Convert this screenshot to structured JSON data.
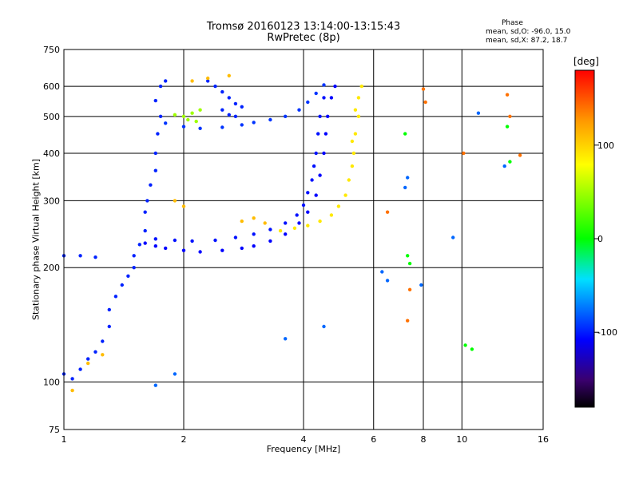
{
  "header": {
    "title_line1": "Tromsø 20160123 13:14:00-13:15:43",
    "title_line2": "RwPretec (8p)"
  },
  "phase_info": {
    "title": "Phase",
    "line_o": "mean, sd,O: -96.0, 15.0",
    "line_x": "mean, sd,X:  87.2, 18.7"
  },
  "colorbar": {
    "unit": "[deg]",
    "ticks": [
      "100",
      "0",
      "-100"
    ],
    "range": [
      -180,
      180
    ]
  },
  "chart_data": {
    "type": "scatter",
    "xlabel": "Frequency [MHz]",
    "ylabel": "Stationary phase Virtual Height [km]",
    "x_scale": "log",
    "y_scale": "log",
    "xlim": [
      1,
      16
    ],
    "ylim": [
      75,
      750
    ],
    "x_ticks": [
      "1",
      "2",
      "4",
      "6",
      "8",
      "10",
      "16"
    ],
    "y_ticks": [
      "75",
      "100",
      "200",
      "300",
      "400",
      "500",
      "600",
      "750"
    ],
    "grid": true,
    "series": [
      {
        "phase": -100,
        "points": [
          [
            1.0,
            215
          ],
          [
            1.1,
            215
          ],
          [
            1.2,
            213
          ],
          [
            1.0,
            105
          ],
          [
            1.05,
            102
          ],
          [
            1.1,
            108
          ],
          [
            1.15,
            115
          ],
          [
            1.2,
            120
          ],
          [
            1.25,
            128
          ],
          [
            1.3,
            140
          ],
          [
            1.3,
            155
          ],
          [
            1.35,
            168
          ],
          [
            1.4,
            180
          ],
          [
            1.45,
            190
          ],
          [
            1.5,
            200
          ],
          [
            1.5,
            215
          ],
          [
            1.55,
            230
          ],
          [
            1.6,
            250
          ],
          [
            1.6,
            280
          ],
          [
            1.62,
            300
          ],
          [
            1.65,
            330
          ],
          [
            1.7,
            360
          ],
          [
            1.7,
            400
          ],
          [
            1.72,
            450
          ],
          [
            1.75,
            500
          ],
          [
            1.7,
            550
          ],
          [
            1.75,
            600
          ],
          [
            1.8,
            620
          ]
        ]
      },
      {
        "phase": -110,
        "points": [
          [
            1.6,
            232
          ],
          [
            1.7,
            228
          ],
          [
            1.8,
            225
          ],
          [
            2.0,
            222
          ],
          [
            2.2,
            220
          ],
          [
            2.5,
            222
          ],
          [
            2.8,
            225
          ],
          [
            3.0,
            228
          ],
          [
            3.3,
            235
          ],
          [
            3.6,
            245
          ],
          [
            3.9,
            262
          ],
          [
            4.1,
            280
          ],
          [
            4.3,
            310
          ],
          [
            4.4,
            350
          ],
          [
            4.5,
            400
          ],
          [
            4.55,
            450
          ],
          [
            4.6,
            500
          ],
          [
            4.7,
            560
          ],
          [
            4.8,
            600
          ]
        ]
      },
      {
        "phase": -105,
        "points": [
          [
            1.7,
            238
          ],
          [
            1.9,
            236
          ],
          [
            2.1,
            235
          ],
          [
            2.4,
            236
          ],
          [
            2.7,
            240
          ],
          [
            3.0,
            245
          ],
          [
            3.3,
            252
          ],
          [
            3.6,
            262
          ],
          [
            3.85,
            275
          ],
          [
            4.0,
            292
          ],
          [
            4.1,
            315
          ],
          [
            4.2,
            340
          ],
          [
            4.25,
            370
          ],
          [
            4.3,
            400
          ],
          [
            4.35,
            450
          ],
          [
            4.4,
            500
          ],
          [
            4.5,
            560
          ]
        ]
      },
      {
        "phase": -95,
        "points": [
          [
            1.8,
            480
          ],
          [
            2.0,
            470
          ],
          [
            2.2,
            465
          ],
          [
            2.5,
            468
          ],
          [
            2.8,
            475
          ],
          [
            3.0,
            482
          ],
          [
            3.3,
            490
          ],
          [
            3.6,
            500
          ],
          [
            3.9,
            520
          ],
          [
            4.1,
            545
          ],
          [
            4.3,
            575
          ],
          [
            4.5,
            605
          ]
        ]
      },
      {
        "phase": -100,
        "points": [
          [
            2.3,
            620
          ],
          [
            2.4,
            600
          ],
          [
            2.5,
            580
          ],
          [
            2.6,
            560
          ],
          [
            2.7,
            540
          ],
          [
            2.8,
            530
          ],
          [
            2.5,
            520
          ],
          [
            2.6,
            505
          ],
          [
            2.7,
            500
          ]
        ]
      },
      {
        "phase": 90,
        "points": [
          [
            3.5,
            250
          ],
          [
            3.8,
            254
          ],
          [
            4.1,
            258
          ],
          [
            4.4,
            265
          ],
          [
            4.7,
            275
          ],
          [
            4.9,
            290
          ],
          [
            5.1,
            310
          ],
          [
            5.2,
            340
          ],
          [
            5.3,
            370
          ],
          [
            5.35,
            400
          ],
          [
            5.4,
            450
          ],
          [
            5.5,
            500
          ],
          [
            5.5,
            560
          ],
          [
            5.6,
            600
          ],
          [
            5.4,
            520
          ],
          [
            5.3,
            430
          ]
        ]
      },
      {
        "phase": 50,
        "points": [
          [
            2.0,
            500
          ],
          [
            2.1,
            510
          ],
          [
            2.2,
            520
          ],
          [
            2.05,
            490
          ],
          [
            1.9,
            505
          ],
          [
            2.15,
            485
          ]
        ]
      },
      {
        "phase": 110,
        "points": [
          [
            2.8,
            265
          ],
          [
            3.0,
            270
          ],
          [
            3.2,
            262
          ],
          [
            2.1,
            620
          ],
          [
            2.3,
            630
          ],
          [
            2.6,
            640
          ],
          [
            1.9,
            300
          ],
          [
            2.0,
            290
          ],
          [
            1.15,
            112
          ],
          [
            1.25,
            118
          ],
          [
            1.05,
            95
          ]
        ]
      },
      {
        "phase": 140,
        "points": [
          [
            6.5,
            280
          ],
          [
            7.3,
            145
          ],
          [
            7.4,
            175
          ],
          [
            8.0,
            590
          ],
          [
            8.1,
            545
          ],
          [
            10.1,
            400
          ],
          [
            13.0,
            570
          ],
          [
            13.2,
            500
          ],
          [
            14.0,
            395
          ]
        ]
      },
      {
        "phase": 0,
        "points": [
          [
            7.2,
            450
          ],
          [
            7.3,
            215
          ],
          [
            7.4,
            205
          ],
          [
            10.2,
            125
          ],
          [
            10.6,
            122
          ],
          [
            13.2,
            380
          ],
          [
            13.0,
            470
          ]
        ]
      },
      {
        "phase": -80,
        "points": [
          [
            6.3,
            195
          ],
          [
            6.5,
            185
          ],
          [
            7.2,
            325
          ],
          [
            7.3,
            345
          ],
          [
            7.9,
            180
          ],
          [
            9.5,
            240
          ],
          [
            11.0,
            510
          ],
          [
            12.8,
            370
          ],
          [
            3.6,
            130
          ],
          [
            4.5,
            140
          ],
          [
            1.9,
            105
          ],
          [
            1.7,
            98
          ]
        ]
      }
    ]
  }
}
